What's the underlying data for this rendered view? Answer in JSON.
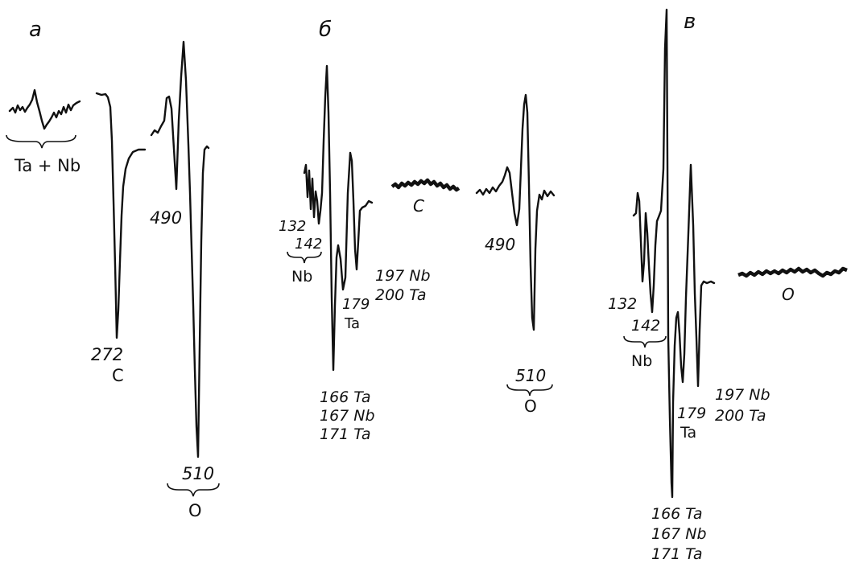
{
  "panels": {
    "a": {
      "letter": "а",
      "ta_nb": "Ta + Nb",
      "peak_c_energy": "272",
      "peak_c_element": "C",
      "peak_490": "490",
      "peak_o_energy": "510",
      "peak_o_element": "O"
    },
    "b": {
      "letter": "б",
      "peak_132": "132",
      "peak_142": "142",
      "nb_label": "Nb",
      "peak_166": "166 Ta",
      "peak_167": "167 Nb",
      "peak_171": "171 Ta",
      "peak_179": "179",
      "peak_179_element": "Ta",
      "peak_197": "197 Nb",
      "peak_200": "200 Ta",
      "c_label": "C",
      "peak_490": "490",
      "peak_o_energy": "510",
      "peak_o_element": "O"
    },
    "c": {
      "letter": "в",
      "peak_132": "132",
      "peak_142": "142",
      "nb_label": "Nb",
      "peak_166": "166 Ta",
      "peak_167": "167 Nb",
      "peak_171": "171 Ta",
      "peak_179": "179",
      "peak_179_element": "Ta",
      "peak_197": "197 Nb",
      "peak_200": "200 Ta",
      "o_label": "O"
    }
  }
}
